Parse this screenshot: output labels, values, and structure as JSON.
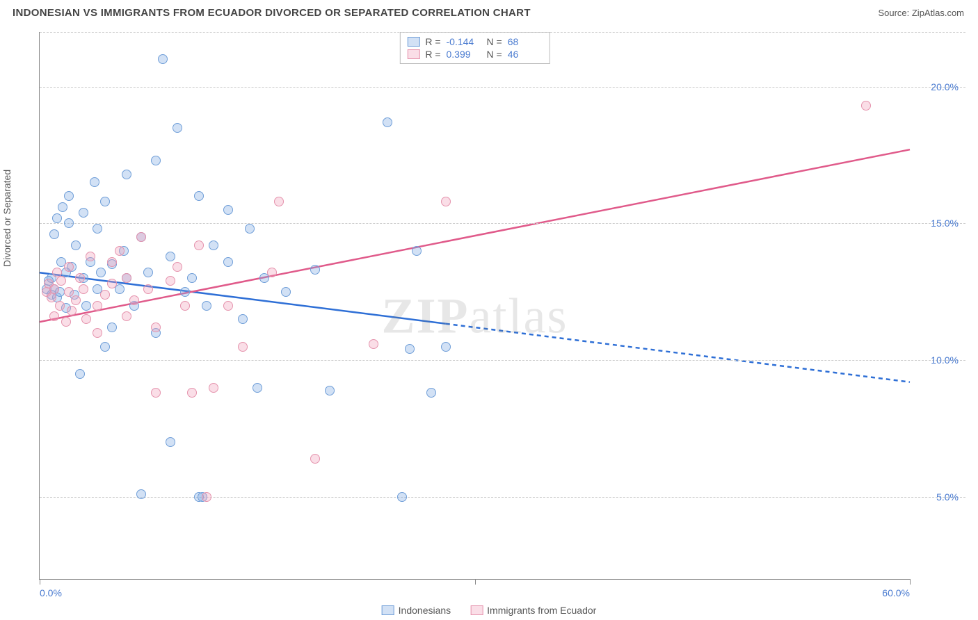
{
  "header": {
    "title": "INDONESIAN VS IMMIGRANTS FROM ECUADOR DIVORCED OR SEPARATED CORRELATION CHART",
    "source": "Source: ZipAtlas.com"
  },
  "chart": {
    "type": "scatter",
    "ylabel": "Divorced or Separated",
    "xlim": [
      0,
      60
    ],
    "ylim": [
      2,
      22
    ],
    "xtick_positions": [
      0,
      30,
      60
    ],
    "xtick_labels": [
      "0.0%",
      "",
      "60.0%"
    ],
    "ytick_positions": [
      5,
      10,
      15,
      20
    ],
    "ytick_labels": [
      "5.0%",
      "10.0%",
      "15.0%",
      "20.0%"
    ],
    "background_color": "#ffffff",
    "grid_color": "#cccccc",
    "grid_dash": "4,3",
    "axis_color": "#888888",
    "tick_label_color": "#4a7bd0",
    "axis_label_color": "#555555",
    "axis_label_fontsize": 14,
    "marker_radius": 7,
    "marker_stroke_width": 1.2,
    "trend_line_width": 2.5,
    "series": [
      {
        "name": "Indonesians",
        "fill_color": "rgba(125,168,227,0.35)",
        "stroke_color": "#6f9ed8",
        "R": "-0.144",
        "N": "68",
        "trend": {
          "color": "#2e6fd6",
          "y_at_xmin": 13.2,
          "y_at_xmax": 9.2,
          "solid_until_x": 28,
          "dash_after": true
        },
        "points": [
          [
            0.5,
            12.6
          ],
          [
            0.6,
            12.9
          ],
          [
            0.8,
            12.4
          ],
          [
            0.8,
            13.0
          ],
          [
            1.0,
            12.6
          ],
          [
            1.0,
            14.6
          ],
          [
            1.2,
            12.3
          ],
          [
            1.2,
            15.2
          ],
          [
            1.4,
            12.5
          ],
          [
            1.5,
            13.6
          ],
          [
            1.6,
            15.6
          ],
          [
            1.8,
            11.9
          ],
          [
            1.8,
            13.2
          ],
          [
            2.0,
            15.0
          ],
          [
            2.0,
            16.0
          ],
          [
            2.2,
            13.4
          ],
          [
            2.4,
            12.4
          ],
          [
            2.5,
            14.2
          ],
          [
            2.8,
            9.5
          ],
          [
            3.0,
            13.0
          ],
          [
            3.0,
            15.4
          ],
          [
            3.2,
            12.0
          ],
          [
            3.5,
            13.6
          ],
          [
            3.8,
            16.5
          ],
          [
            4.0,
            12.6
          ],
          [
            4.0,
            14.8
          ],
          [
            4.2,
            13.2
          ],
          [
            4.5,
            10.5
          ],
          [
            4.5,
            15.8
          ],
          [
            5.0,
            11.2
          ],
          [
            5.0,
            13.5
          ],
          [
            5.5,
            12.6
          ],
          [
            5.8,
            14.0
          ],
          [
            6.0,
            13.0
          ],
          [
            6.0,
            16.8
          ],
          [
            6.5,
            12.0
          ],
          [
            7.0,
            14.5
          ],
          [
            7.0,
            5.1
          ],
          [
            7.5,
            13.2
          ],
          [
            8.0,
            11.0
          ],
          [
            8.0,
            17.3
          ],
          [
            8.5,
            21.0
          ],
          [
            9.0,
            13.8
          ],
          [
            9.0,
            7.0
          ],
          [
            9.5,
            18.5
          ],
          [
            10.0,
            12.5
          ],
          [
            10.5,
            13.0
          ],
          [
            11.0,
            16.0
          ],
          [
            11.0,
            5.0
          ],
          [
            11.2,
            5.0
          ],
          [
            11.5,
            12.0
          ],
          [
            12.0,
            14.2
          ],
          [
            13.0,
            15.5
          ],
          [
            13.0,
            13.6
          ],
          [
            14.0,
            11.5
          ],
          [
            14.5,
            14.8
          ],
          [
            15.0,
            9.0
          ],
          [
            15.5,
            13.0
          ],
          [
            17.0,
            12.5
          ],
          [
            19.0,
            13.3
          ],
          [
            20.0,
            8.9
          ],
          [
            24.0,
            18.7
          ],
          [
            25.0,
            5.0
          ],
          [
            25.5,
            10.4
          ],
          [
            26.0,
            14.0
          ],
          [
            27.0,
            8.8
          ],
          [
            28.0,
            10.5
          ]
        ]
      },
      {
        "name": "Immigrants from Ecuador",
        "fill_color": "rgba(240,160,185,0.35)",
        "stroke_color": "#e593ad",
        "R": "0.399",
        "N": "46",
        "trend": {
          "color": "#e05a8a",
          "y_at_xmin": 11.4,
          "y_at_xmax": 17.7,
          "solid_until_x": 60,
          "dash_after": false
        },
        "points": [
          [
            0.5,
            12.5
          ],
          [
            0.6,
            12.8
          ],
          [
            0.8,
            12.3
          ],
          [
            1.0,
            12.6
          ],
          [
            1.0,
            11.6
          ],
          [
            1.2,
            13.2
          ],
          [
            1.4,
            12.0
          ],
          [
            1.5,
            12.9
          ],
          [
            1.8,
            11.4
          ],
          [
            2.0,
            12.5
          ],
          [
            2.0,
            13.4
          ],
          [
            2.2,
            11.8
          ],
          [
            2.5,
            12.2
          ],
          [
            2.8,
            13.0
          ],
          [
            3.0,
            12.6
          ],
          [
            3.2,
            11.5
          ],
          [
            3.5,
            13.8
          ],
          [
            4.0,
            12.0
          ],
          [
            4.0,
            11.0
          ],
          [
            4.5,
            12.4
          ],
          [
            5.0,
            13.6
          ],
          [
            5.0,
            12.8
          ],
          [
            5.5,
            14.0
          ],
          [
            6.0,
            11.6
          ],
          [
            6.0,
            13.0
          ],
          [
            6.5,
            12.2
          ],
          [
            7.0,
            14.5
          ],
          [
            7.5,
            12.6
          ],
          [
            8.0,
            11.2
          ],
          [
            8.0,
            8.8
          ],
          [
            9.0,
            12.9
          ],
          [
            9.5,
            13.4
          ],
          [
            10.0,
            12.0
          ],
          [
            10.5,
            8.8
          ],
          [
            11.0,
            14.2
          ],
          [
            11.5,
            5.0
          ],
          [
            12.0,
            9.0
          ],
          [
            13.0,
            12.0
          ],
          [
            14.0,
            10.5
          ],
          [
            16.0,
            13.2
          ],
          [
            16.5,
            15.8
          ],
          [
            19.0,
            6.4
          ],
          [
            23.0,
            10.6
          ],
          [
            28.0,
            15.8
          ],
          [
            57.0,
            19.3
          ]
        ]
      }
    ],
    "watermark": {
      "text_bold": "ZIP",
      "text_light": "atlas"
    }
  },
  "legend": {
    "stats_label_R": "R =",
    "stats_label_N": "N ="
  }
}
